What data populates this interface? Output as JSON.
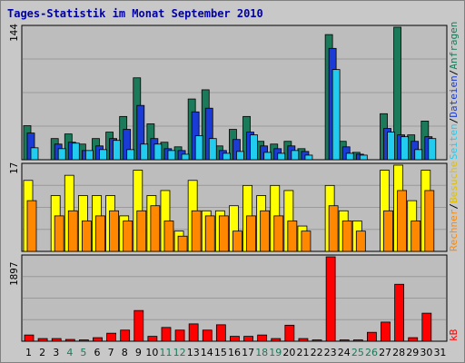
{
  "chart_data": [
    {
      "type": "bar",
      "title": "Tages-Statistik im Monat September 2010",
      "categories": [
        "1",
        "2",
        "3",
        "4",
        "5",
        "6",
        "7",
        "8",
        "9",
        "10",
        "11",
        "12",
        "13",
        "14",
        "15",
        "16",
        "17",
        "18",
        "19",
        "20",
        "21",
        "22",
        "23",
        "24",
        "25",
        "26",
        "27",
        "28",
        "29",
        "30",
        "31"
      ],
      "weekend_days": [
        "4",
        "5",
        "11",
        "12",
        "18",
        "19",
        "25",
        "26"
      ],
      "ymax_label": "144",
      "ylim": [
        0,
        144
      ],
      "grid": true,
      "series": [
        {
          "name": "Anfragen",
          "color": "#1a7a5a",
          "values": [
            37,
            0,
            23,
            28,
            17,
            23,
            30,
            47,
            89,
            39,
            19,
            14,
            66,
            76,
            15,
            33,
            47,
            20,
            17,
            20,
            12,
            0,
            136,
            20,
            8,
            0,
            50,
            144,
            27,
            42,
            0
          ]
        },
        {
          "name": "Dateien",
          "color": "#1a3bd6",
          "values": [
            29,
            0,
            17,
            19,
            10,
            15,
            23,
            33,
            59,
            23,
            12,
            10,
            52,
            56,
            10,
            22,
            30,
            15,
            12,
            15,
            9,
            0,
            121,
            14,
            6,
            0,
            34,
            27,
            20,
            25,
            0
          ]
        },
        {
          "name": "Seiten",
          "color": "#22ccee",
          "values": [
            13,
            0,
            12,
            18,
            10,
            11,
            21,
            11,
            17,
            17,
            10,
            6,
            26,
            23,
            7,
            9,
            27,
            8,
            7,
            10,
            5,
            0,
            98,
            7,
            5,
            0,
            30,
            25,
            11,
            23,
            0
          ]
        }
      ]
    },
    {
      "type": "bar",
      "ymax_label": "17",
      "ylim": [
        0,
        17
      ],
      "grid": true,
      "series": [
        {
          "name": "Besuche",
          "color": "#ffff00",
          "values": [
            14,
            0,
            11,
            15,
            11,
            11,
            11,
            7,
            16,
            11,
            12,
            4,
            14,
            8,
            8,
            9,
            13,
            11,
            13,
            12,
            5,
            0,
            13,
            8,
            6,
            0,
            16,
            17,
            10,
            16,
            0
          ]
        },
        {
          "name": "Rechner",
          "color": "#ff8800",
          "values": [
            10,
            0,
            7,
            8,
            6,
            7,
            8,
            6,
            8,
            9,
            6,
            3,
            8,
            7,
            7,
            4,
            7,
            8,
            7,
            6,
            4,
            0,
            9,
            6,
            4,
            0,
            8,
            12,
            6,
            12,
            0
          ]
        }
      ]
    },
    {
      "type": "bar",
      "ymax_label": "1897",
      "ylim": [
        0,
        1897
      ],
      "grid": true,
      "series": [
        {
          "name": "kB",
          "color": "#ff0000",
          "values": [
            140,
            60,
            60,
            40,
            30,
            80,
            180,
            250,
            690,
            110,
            310,
            250,
            390,
            250,
            370,
            110,
            110,
            140,
            60,
            360,
            60,
            30,
            1897,
            30,
            30,
            200,
            430,
            1280,
            80,
            630,
            0
          ]
        }
      ]
    }
  ],
  "right_labels": [
    {
      "text": "Anfragen",
      "color": "#1a7a5a"
    },
    {
      "text": "Dateien",
      "color": "#1a3bd6"
    },
    {
      "text": "Seiten",
      "color": "#22ccee"
    },
    {
      "text": "Besuche",
      "color": "#e0c000"
    },
    {
      "text": "Rechner",
      "color": "#ff8800"
    },
    {
      "text": "kB",
      "color": "#ff0000"
    }
  ],
  "colors": {
    "background": "#c8c8c8",
    "plot_background": "#bdbdbd",
    "grid": "#9a9a9a",
    "title": "#0000aa",
    "weekday_label": "#000000",
    "weekend_label": "#1a7a5a"
  }
}
